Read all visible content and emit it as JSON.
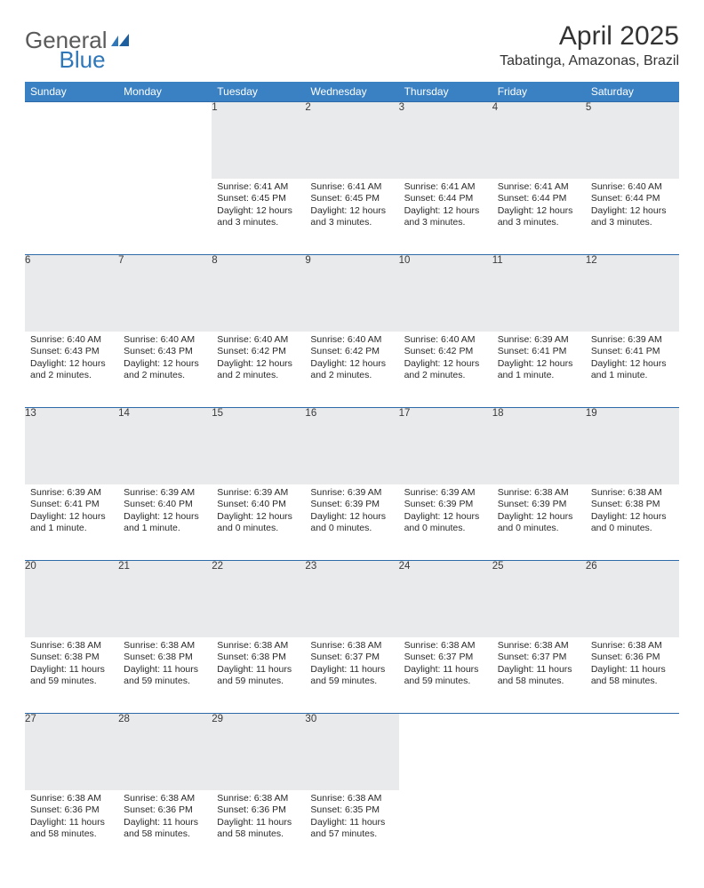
{
  "brand": {
    "part1": "General",
    "part2": "Blue"
  },
  "title": "April 2025",
  "location": "Tabatinga, Amazonas, Brazil",
  "colors": {
    "header_bg": "#3a81c4",
    "header_fg": "#ffffff",
    "daynum_bg": "#e9eaec",
    "row_border": "#2f6aa8",
    "logo_grey": "#5a5a5a",
    "logo_blue": "#2f77b8"
  },
  "weekdays": [
    "Sunday",
    "Monday",
    "Tuesday",
    "Wednesday",
    "Thursday",
    "Friday",
    "Saturday"
  ],
  "weeks": [
    [
      null,
      null,
      {
        "n": "1",
        "sunrise": "6:41 AM",
        "sunset": "6:45 PM",
        "daylight": "12 hours and 3 minutes."
      },
      {
        "n": "2",
        "sunrise": "6:41 AM",
        "sunset": "6:45 PM",
        "daylight": "12 hours and 3 minutes."
      },
      {
        "n": "3",
        "sunrise": "6:41 AM",
        "sunset": "6:44 PM",
        "daylight": "12 hours and 3 minutes."
      },
      {
        "n": "4",
        "sunrise": "6:41 AM",
        "sunset": "6:44 PM",
        "daylight": "12 hours and 3 minutes."
      },
      {
        "n": "5",
        "sunrise": "6:40 AM",
        "sunset": "6:44 PM",
        "daylight": "12 hours and 3 minutes."
      }
    ],
    [
      {
        "n": "6",
        "sunrise": "6:40 AM",
        "sunset": "6:43 PM",
        "daylight": "12 hours and 2 minutes."
      },
      {
        "n": "7",
        "sunrise": "6:40 AM",
        "sunset": "6:43 PM",
        "daylight": "12 hours and 2 minutes."
      },
      {
        "n": "8",
        "sunrise": "6:40 AM",
        "sunset": "6:42 PM",
        "daylight": "12 hours and 2 minutes."
      },
      {
        "n": "9",
        "sunrise": "6:40 AM",
        "sunset": "6:42 PM",
        "daylight": "12 hours and 2 minutes."
      },
      {
        "n": "10",
        "sunrise": "6:40 AM",
        "sunset": "6:42 PM",
        "daylight": "12 hours and 2 minutes."
      },
      {
        "n": "11",
        "sunrise": "6:39 AM",
        "sunset": "6:41 PM",
        "daylight": "12 hours and 1 minute."
      },
      {
        "n": "12",
        "sunrise": "6:39 AM",
        "sunset": "6:41 PM",
        "daylight": "12 hours and 1 minute."
      }
    ],
    [
      {
        "n": "13",
        "sunrise": "6:39 AM",
        "sunset": "6:41 PM",
        "daylight": "12 hours and 1 minute."
      },
      {
        "n": "14",
        "sunrise": "6:39 AM",
        "sunset": "6:40 PM",
        "daylight": "12 hours and 1 minute."
      },
      {
        "n": "15",
        "sunrise": "6:39 AM",
        "sunset": "6:40 PM",
        "daylight": "12 hours and 0 minutes."
      },
      {
        "n": "16",
        "sunrise": "6:39 AM",
        "sunset": "6:39 PM",
        "daylight": "12 hours and 0 minutes."
      },
      {
        "n": "17",
        "sunrise": "6:39 AM",
        "sunset": "6:39 PM",
        "daylight": "12 hours and 0 minutes."
      },
      {
        "n": "18",
        "sunrise": "6:38 AM",
        "sunset": "6:39 PM",
        "daylight": "12 hours and 0 minutes."
      },
      {
        "n": "19",
        "sunrise": "6:38 AM",
        "sunset": "6:38 PM",
        "daylight": "12 hours and 0 minutes."
      }
    ],
    [
      {
        "n": "20",
        "sunrise": "6:38 AM",
        "sunset": "6:38 PM",
        "daylight": "11 hours and 59 minutes."
      },
      {
        "n": "21",
        "sunrise": "6:38 AM",
        "sunset": "6:38 PM",
        "daylight": "11 hours and 59 minutes."
      },
      {
        "n": "22",
        "sunrise": "6:38 AM",
        "sunset": "6:38 PM",
        "daylight": "11 hours and 59 minutes."
      },
      {
        "n": "23",
        "sunrise": "6:38 AM",
        "sunset": "6:37 PM",
        "daylight": "11 hours and 59 minutes."
      },
      {
        "n": "24",
        "sunrise": "6:38 AM",
        "sunset": "6:37 PM",
        "daylight": "11 hours and 59 minutes."
      },
      {
        "n": "25",
        "sunrise": "6:38 AM",
        "sunset": "6:37 PM",
        "daylight": "11 hours and 58 minutes."
      },
      {
        "n": "26",
        "sunrise": "6:38 AM",
        "sunset": "6:36 PM",
        "daylight": "11 hours and 58 minutes."
      }
    ],
    [
      {
        "n": "27",
        "sunrise": "6:38 AM",
        "sunset": "6:36 PM",
        "daylight": "11 hours and 58 minutes."
      },
      {
        "n": "28",
        "sunrise": "6:38 AM",
        "sunset": "6:36 PM",
        "daylight": "11 hours and 58 minutes."
      },
      {
        "n": "29",
        "sunrise": "6:38 AM",
        "sunset": "6:36 PM",
        "daylight": "11 hours and 58 minutes."
      },
      {
        "n": "30",
        "sunrise": "6:38 AM",
        "sunset": "6:35 PM",
        "daylight": "11 hours and 57 minutes."
      },
      null,
      null,
      null
    ]
  ],
  "labels": {
    "sunrise": "Sunrise:",
    "sunset": "Sunset:",
    "daylight": "Daylight:"
  }
}
